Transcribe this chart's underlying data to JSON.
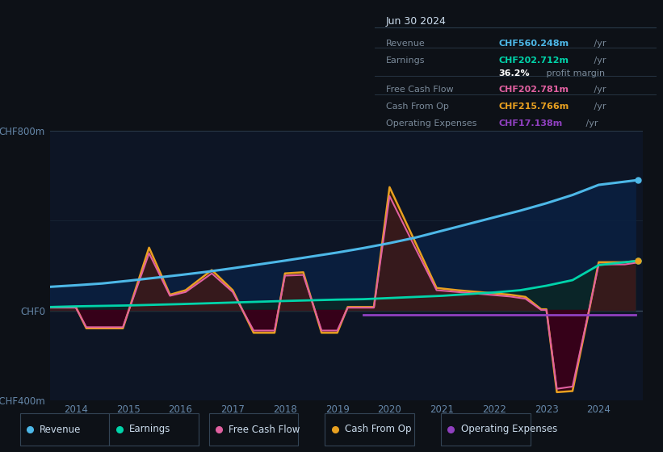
{
  "bg_color": "#0d1117",
  "plot_bg_color": "#0d1525",
  "ylim": [
    -400,
    800
  ],
  "xlim": [
    2013.5,
    2024.85
  ],
  "yticks_labels": [
    "CHF800m",
    "CHF0",
    "-CHF400m"
  ],
  "yticks_values": [
    800,
    0,
    -400
  ],
  "xticks": [
    2014,
    2015,
    2016,
    2017,
    2018,
    2019,
    2020,
    2021,
    2022,
    2023,
    2024
  ],
  "revenue": {
    "x": [
      2013.5,
      2014,
      2014.5,
      2015,
      2015.5,
      2016,
      2016.5,
      2017,
      2017.5,
      2018,
      2018.5,
      2019,
      2019.5,
      2020,
      2020.5,
      2021,
      2021.5,
      2022,
      2022.5,
      2023,
      2023.5,
      2024,
      2024.7
    ],
    "y": [
      105,
      112,
      120,
      132,
      145,
      158,
      172,
      188,
      205,
      222,
      240,
      258,
      278,
      300,
      325,
      355,
      385,
      415,
      445,
      478,
      515,
      560,
      580
    ],
    "color": "#4db8e8",
    "lw": 2.2
  },
  "earnings": {
    "x": [
      2013.5,
      2014,
      2015,
      2016,
      2017,
      2018,
      2019,
      2019.5,
      2020,
      2021,
      2022,
      2022.5,
      2023,
      2023.5,
      2024,
      2024.7
    ],
    "y": [
      15,
      18,
      22,
      28,
      35,
      42,
      48,
      50,
      55,
      65,
      80,
      90,
      110,
      135,
      202,
      220
    ],
    "color": "#00d4aa",
    "lw": 2.0
  },
  "cash_from_op": {
    "x": [
      2013.5,
      2014.0,
      2014.2,
      2014.9,
      2015.4,
      2015.8,
      2016.1,
      2016.6,
      2017.0,
      2017.4,
      2017.8,
      2018.0,
      2018.35,
      2018.7,
      2019.0,
      2019.2,
      2019.7,
      2020.0,
      2020.5,
      2020.9,
      2021.3,
      2021.8,
      2022.3,
      2022.6,
      2022.9,
      2023.0,
      2023.2,
      2023.5,
      2023.8,
      2024.0,
      2024.5,
      2024.7
    ],
    "y": [
      15,
      15,
      -80,
      -80,
      280,
      70,
      90,
      180,
      90,
      -100,
      -100,
      165,
      170,
      -100,
      -100,
      15,
      15,
      550,
      300,
      100,
      90,
      80,
      70,
      60,
      5,
      5,
      -365,
      -360,
      -20,
      215,
      215,
      220
    ],
    "color": "#e8a020",
    "lw": 1.8
  },
  "free_cash_flow": {
    "x": [
      2013.5,
      2014.0,
      2014.2,
      2014.9,
      2015.4,
      2015.8,
      2016.1,
      2016.6,
      2017.0,
      2017.4,
      2017.8,
      2018.0,
      2018.35,
      2018.7,
      2019.0,
      2019.2,
      2019.7,
      2020.0,
      2020.5,
      2020.9,
      2021.3,
      2021.8,
      2022.3,
      2022.6,
      2022.9,
      2023.0,
      2023.2,
      2023.5,
      2023.8,
      2024.0,
      2024.5,
      2024.7
    ],
    "y": [
      12,
      12,
      -75,
      -75,
      255,
      65,
      82,
      165,
      82,
      -90,
      -90,
      155,
      158,
      -90,
      -90,
      12,
      12,
      510,
      275,
      90,
      82,
      72,
      62,
      52,
      2,
      2,
      -350,
      -340,
      -15,
      205,
      205,
      212
    ],
    "color": "#e060a0",
    "lw": 1.5
  },
  "op_expenses": {
    "x": [
      2019.5,
      2024.7
    ],
    "y": [
      -18,
      -18
    ],
    "color": "#9040c0",
    "lw": 2.0
  },
  "legend": [
    {
      "label": "Revenue",
      "color": "#4db8e8"
    },
    {
      "label": "Earnings",
      "color": "#00d4aa"
    },
    {
      "label": "Free Cash Flow",
      "color": "#e060a0"
    },
    {
      "label": "Cash From Op",
      "color": "#e8a020"
    },
    {
      "label": "Operating Expenses",
      "color": "#9040c0"
    }
  ],
  "info_box": {
    "date": "Jun 30 2024",
    "rows": [
      {
        "label": "Revenue",
        "value": "CHF560.248m",
        "value_color": "#4db8e8",
        "suffix": " /yr"
      },
      {
        "label": "Earnings",
        "value": "CHF202.712m",
        "value_color": "#00d4aa",
        "suffix": " /yr"
      },
      {
        "label": "",
        "value": "36.2%",
        "value_color": "#ffffff",
        "suffix": " profit margin"
      },
      {
        "label": "Free Cash Flow",
        "value": "CHF202.781m",
        "value_color": "#e060a0",
        "suffix": " /yr"
      },
      {
        "label": "Cash From Op",
        "value": "CHF215.766m",
        "value_color": "#e8a020",
        "suffix": " /yr"
      },
      {
        "label": "Operating Expenses",
        "value": "CHF17.138m",
        "value_color": "#9040c0",
        "suffix": " /yr"
      }
    ]
  }
}
